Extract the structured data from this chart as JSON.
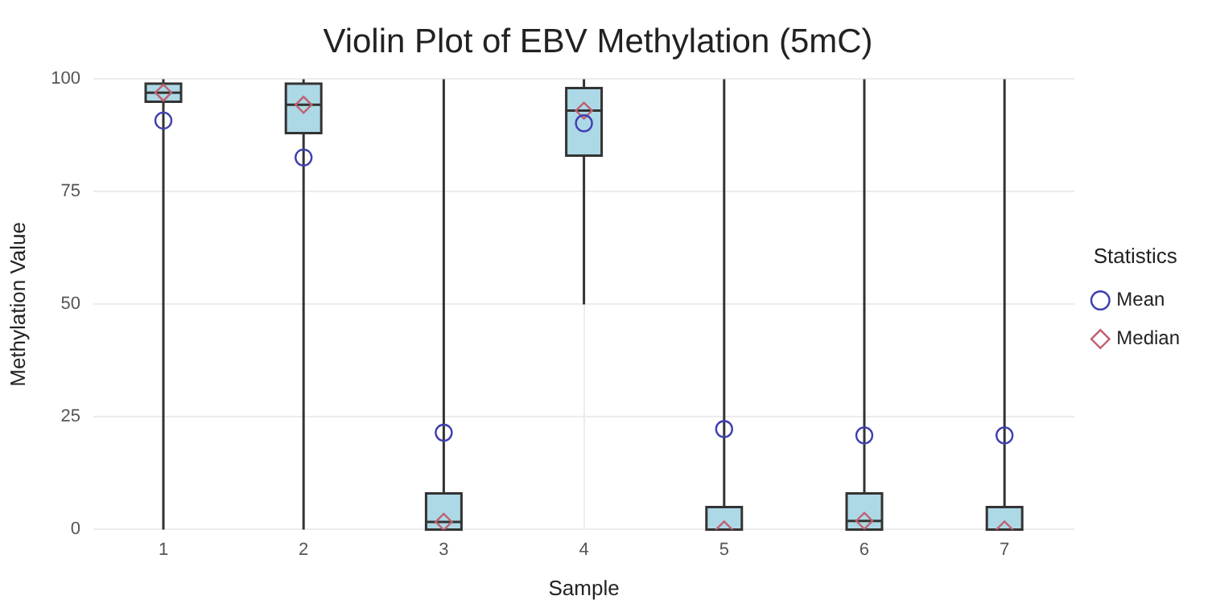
{
  "chart_data": {
    "type": "box",
    "title": "Violin Plot of EBV Methylation (5mC)",
    "xlabel": "Sample",
    "ylabel": "Methylation Value",
    "legend_title": "Statistics",
    "categories": [
      "1",
      "2",
      "3",
      "4",
      "5",
      "6",
      "7"
    ],
    "ylim": [
      0,
      100
    ],
    "yticks": [
      0,
      25,
      50,
      75,
      100
    ],
    "grid": true,
    "legend": "right",
    "series": [
      {
        "color": "#add8e6",
        "boxes": [
          {
            "low": 0,
            "q1": 95,
            "median": 97,
            "q3": 99,
            "high": 100
          },
          {
            "low": 0,
            "q1": 88,
            "median": 94.3,
            "q3": 99,
            "high": 100
          },
          {
            "low": 0,
            "q1": 0,
            "median": 1.7,
            "q3": 8,
            "high": 100
          },
          {
            "low": 50,
            "q1": 83,
            "median": 93,
            "q3": 98,
            "high": 100
          },
          {
            "low": 0,
            "q1": 0,
            "median": 0,
            "q3": 5,
            "high": 100
          },
          {
            "low": 0,
            "q1": 0,
            "median": 1.9,
            "q3": 8,
            "high": 100
          },
          {
            "low": 0,
            "q1": 0,
            "median": 0,
            "q3": 5,
            "high": 100
          }
        ]
      },
      {
        "name": "Mean",
        "type": "scatter",
        "marker": "circle",
        "color": "#4040b0",
        "x": [
          "1",
          "2",
          "3",
          "4",
          "5",
          "6",
          "7"
        ],
        "values": [
          90.8,
          82.6,
          21.5,
          90.2,
          22.3,
          20.9,
          20.9
        ]
      },
      {
        "name": "Median",
        "type": "scatter",
        "marker": "diamond",
        "color": "#c06070",
        "x": [
          "1",
          "2",
          "3",
          "4",
          "5",
          "6",
          "7"
        ],
        "values": [
          97,
          94.3,
          1.7,
          93,
          0,
          1.9,
          0
        ]
      }
    ]
  }
}
